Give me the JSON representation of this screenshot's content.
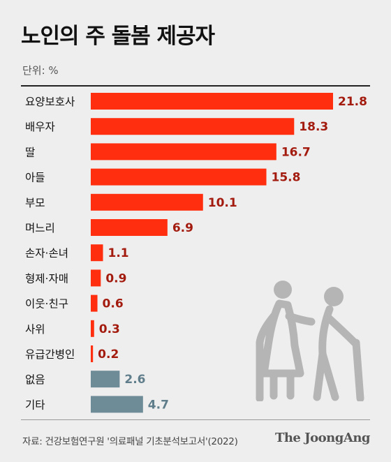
{
  "colors": {
    "accent": "#ff2e0f",
    "accent_text": "#a31b0e",
    "muted": "#6e8b98",
    "muted_text": "#5f7d8a",
    "illustration": "#b5b5b5"
  },
  "header": {
    "title": "노인의 주 돌봄 제공자",
    "unit": "단위: %"
  },
  "chart_data": {
    "type": "bar",
    "orientation": "horizontal",
    "title": "노인의 주 돌봄 제공자",
    "unit": "%",
    "categories": [
      "요양보호사",
      "배우자",
      "딸",
      "아들",
      "부모",
      "며느리",
      "손자·손녀",
      "형제·자매",
      "이웃·친구",
      "사위",
      "유급간병인",
      "없음",
      "기타"
    ],
    "values": [
      21.8,
      18.3,
      16.7,
      15.8,
      10.1,
      6.9,
      1.1,
      0.9,
      0.6,
      0.3,
      0.2,
      2.6,
      4.7
    ],
    "value_labels": [
      "21.8",
      "18.3",
      "16.7",
      "15.8",
      "10.1",
      "6.9",
      "1.1",
      "0.9",
      "0.6",
      "0.3",
      "0.2",
      "2.6",
      "4.7"
    ],
    "highlight": [
      "accent",
      "accent",
      "accent",
      "accent",
      "accent",
      "accent",
      "accent",
      "accent",
      "accent",
      "accent",
      "accent",
      "muted",
      "muted"
    ],
    "xlim": [
      0,
      22.5
    ],
    "grid": false,
    "legend": "none"
  },
  "footer": {
    "source": "자료: 건강보험연구원 '의료패널 기초분석보고서'(2022)",
    "brand": "The JoongAng"
  },
  "illustration": "elderly-couple-with-canes-icon"
}
